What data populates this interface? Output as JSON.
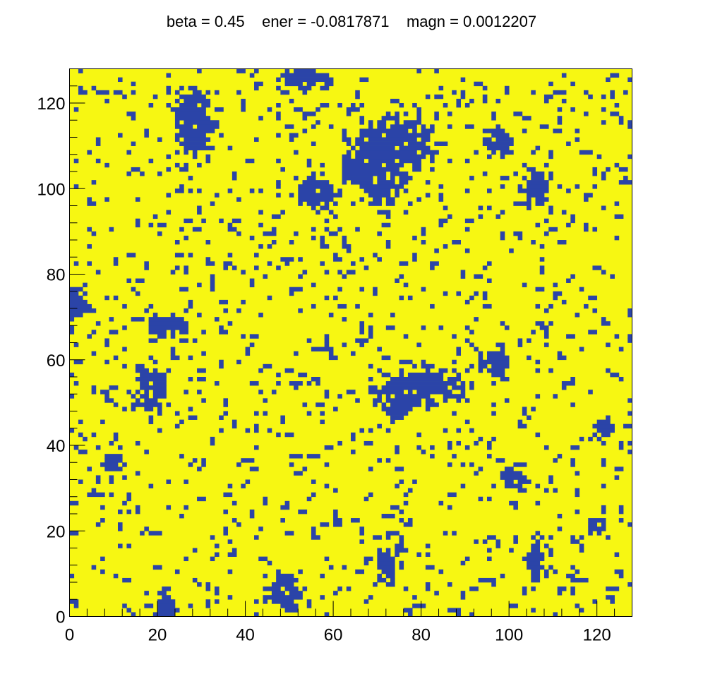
{
  "title": "beta = 0.45    ener = -0.0817871    magn = 0.0012207",
  "chart_data": {
    "type": "heatmap",
    "title": "beta = 0.45    ener = -0.0817871    magn = 0.0012207",
    "xlabel": "",
    "ylabel": "",
    "xlim": [
      0,
      128
    ],
    "ylim": [
      0,
      128
    ],
    "nx": 128,
    "ny": 128,
    "x_ticks": [
      0,
      20,
      40,
      60,
      80,
      100,
      120
    ],
    "y_ticks": [
      0,
      20,
      40,
      60,
      80,
      100,
      120
    ],
    "x_tick_labels": [
      "0",
      "20",
      "40",
      "60",
      "80",
      "100",
      "120"
    ],
    "y_tick_labels": [
      "0",
      "20",
      "40",
      "60",
      "80",
      "100",
      "120"
    ],
    "spin_colors": {
      "up": "#f7f712",
      "down": "#2b44a8"
    },
    "values": {
      "up": 1,
      "down": -1,
      "default": 1,
      "magnetization": 0.0012207,
      "energy": -0.0817871,
      "beta": 0.45,
      "down_regions": [
        {
          "x": [
            24,
            32
          ],
          "y": [
            108,
            124
          ]
        },
        {
          "x": [
            64,
            76
          ],
          "y": [
            96,
            114
          ]
        },
        {
          "x": [
            68,
            82
          ],
          "y": [
            106,
            116
          ]
        },
        {
          "x": [
            52,
            60
          ],
          "y": [
            96,
            102
          ]
        },
        {
          "x": [
            48,
            58
          ],
          "y": [
            124,
            128
          ]
        },
        {
          "x": [
            94,
            100
          ],
          "y": [
            108,
            114
          ]
        },
        {
          "x": [
            104,
            108
          ],
          "y": [
            96,
            104
          ]
        },
        {
          "x": [
            15,
            22
          ],
          "y": [
            48,
            58
          ]
        },
        {
          "x": [
            70,
            90
          ],
          "y": [
            50,
            58
          ]
        },
        {
          "x": [
            72,
            78
          ],
          "y": [
            46,
            52
          ]
        },
        {
          "x": [
            94,
            100
          ],
          "y": [
            56,
            62
          ]
        },
        {
          "x": [
            18,
            26
          ],
          "y": [
            66,
            70
          ]
        },
        {
          "x": [
            104,
            108
          ],
          "y": [
            8,
            18
          ]
        },
        {
          "x": [
            46,
            52
          ],
          "y": [
            2,
            10
          ]
        },
        {
          "x": [
            70,
            74
          ],
          "y": [
            8,
            16
          ]
        },
        {
          "x": [
            20,
            24
          ],
          "y": [
            0,
            6
          ]
        },
        {
          "x": [
            8,
            12
          ],
          "y": [
            34,
            38
          ]
        },
        {
          "x": [
            118,
            122
          ],
          "y": [
            20,
            24
          ]
        },
        {
          "x": [
            0,
            4
          ],
          "y": [
            70,
            76
          ]
        },
        {
          "x": [
            120,
            124
          ],
          "y": [
            42,
            46
          ]
        },
        {
          "x": [
            98,
            104
          ],
          "y": [
            30,
            34
          ]
        },
        {
          "x": [
            62,
            66
          ],
          "y": [
            102,
            106
          ]
        }
      ]
    }
  }
}
